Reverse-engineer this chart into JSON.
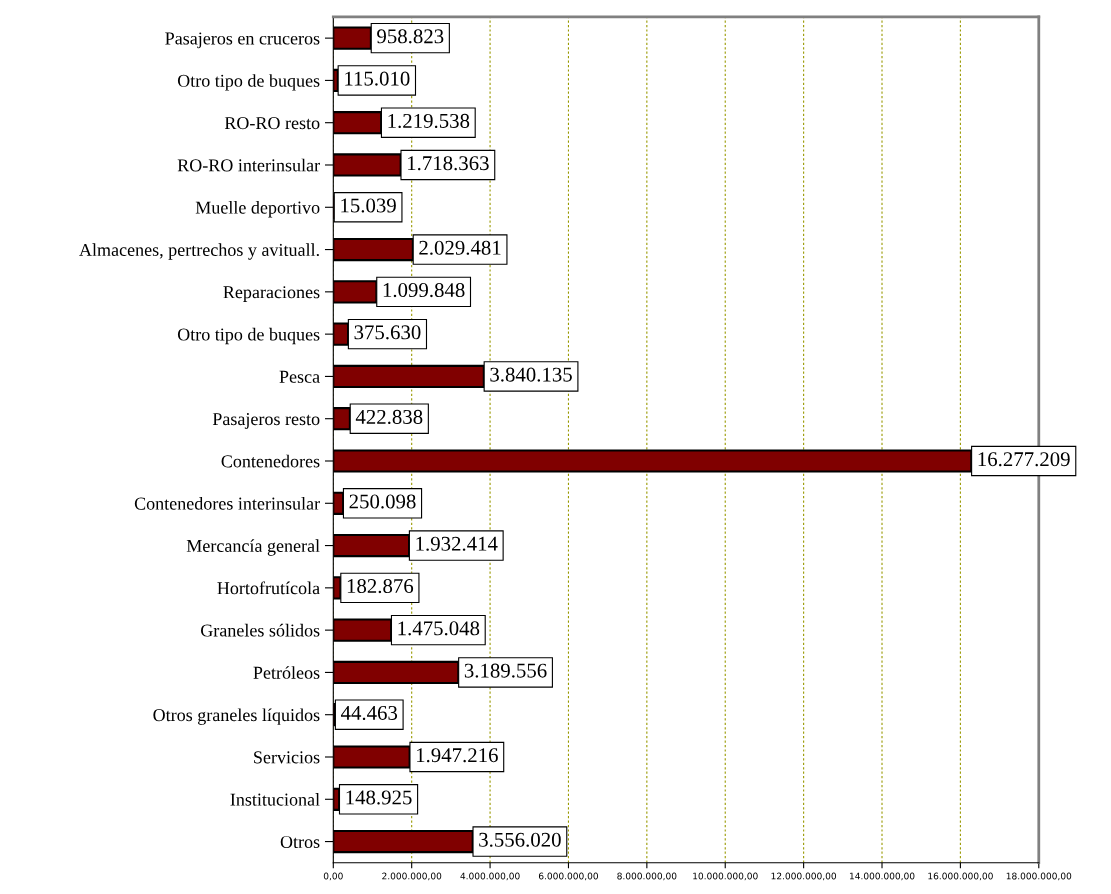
{
  "chart_data": {
    "type": "bar",
    "orientation": "horizontal",
    "categories": [
      "Pasajeros en cruceros",
      "Otro tipo de buques",
      "RO-RO resto",
      "RO-RO interinsular",
      "Muelle deportivo",
      "Almacenes, pertrechos y avituall.",
      "Reparaciones",
      "Otro tipo de buques",
      "Pesca",
      "Pasajeros resto",
      "Contenedores",
      "Contenedores interinsular",
      "Mercancía general",
      "Hortofrutícola",
      "Graneles sólidos",
      "Petróleos",
      "Otros graneles líquidos",
      "Servicios",
      "Institucional",
      "Otros"
    ],
    "values": [
      958823,
      115010,
      1219538,
      1718363,
      15039,
      2029481,
      1099848,
      375630,
      3840135,
      422838,
      16277209,
      250098,
      1932414,
      182876,
      1475048,
      3189556,
      44463,
      1947216,
      148925,
      3556020
    ],
    "value_labels": [
      "958.823",
      "115.010",
      "1.219.538",
      "1.718.363",
      "15.039",
      "2.029.481",
      "1.099.848",
      "375.630",
      "3.840.135",
      "422.838",
      "16.277.209",
      "250.098",
      "1.932.414",
      "182.876",
      "1.475.048",
      "3.189.556",
      "44.463",
      "1.947.216",
      "148.925",
      "3.556.020"
    ],
    "color": "#800000",
    "xlim": [
      0,
      18000000
    ],
    "xticks": [
      {
        "value": 0,
        "label": "0,00"
      },
      {
        "value": 2000000,
        "label": "2.000.000,00"
      },
      {
        "value": 4000000,
        "label": "4.000.000,00"
      },
      {
        "value": 6000000,
        "label": "6.000.000,00"
      },
      {
        "value": 8000000,
        "label": "8.000.000,00"
      },
      {
        "value": 10000000,
        "label": "10.000.000,00"
      },
      {
        "value": 12000000,
        "label": "12.000.000,00"
      },
      {
        "value": 14000000,
        "label": "14.000.000,00"
      },
      {
        "value": 16000000,
        "label": "16.000.000,00"
      },
      {
        "value": 18000000,
        "label": "18.000.000,00"
      }
    ],
    "grid": "x",
    "legend": false
  }
}
